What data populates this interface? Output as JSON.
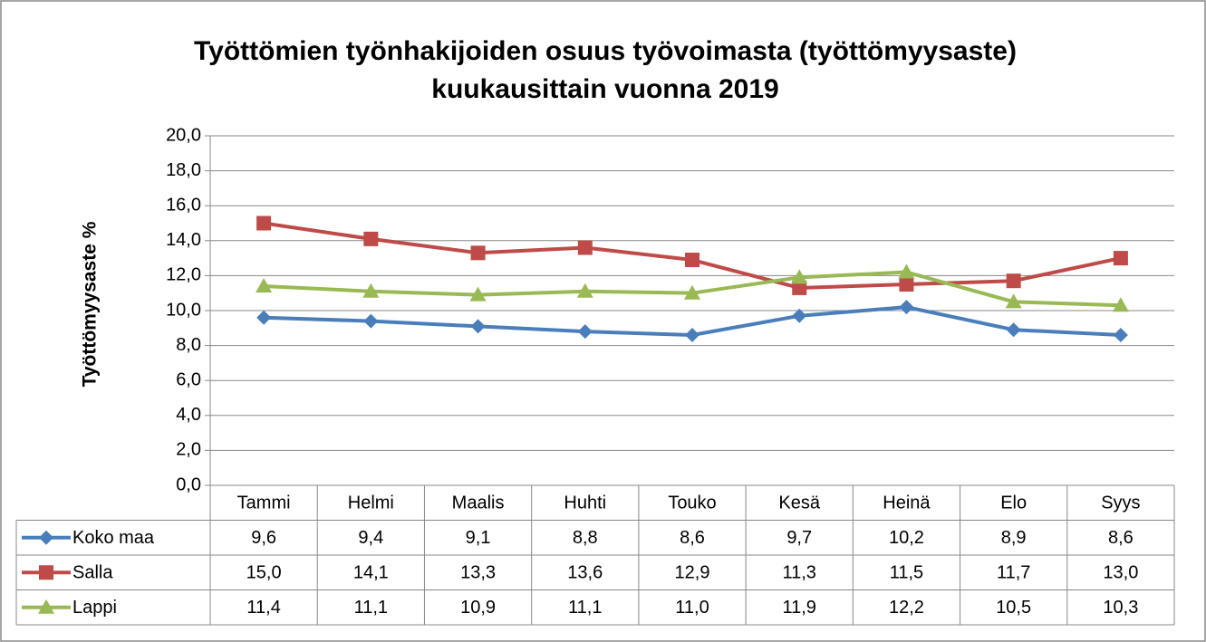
{
  "chart_data": {
    "type": "line",
    "title": "Työttömien työnhakijoiden osuus työvoimasta  (työttömyysaste)",
    "subtitle": "kuukausittain vuonna 2019",
    "y_label": "Työttömyysaste %",
    "categories": [
      "Tammi",
      "Helmi",
      "Maalis",
      "Huhti",
      "Touko",
      "Kesä",
      "Heinä",
      "Elo",
      "Syys"
    ],
    "series": [
      {
        "name": "Koko maa",
        "color": "#4a7ebb",
        "marker": "diamond",
        "values": [
          9.6,
          9.4,
          9.1,
          8.8,
          8.6,
          9.7,
          10.2,
          8.9,
          8.6
        ],
        "value_labels": [
          "9,6",
          "9,4",
          "9,1",
          "8,8",
          "8,6",
          "9,7",
          "10,2",
          "8,9",
          "8,6"
        ]
      },
      {
        "name": "Salla",
        "color": "#be4b48",
        "marker": "square",
        "values": [
          15.0,
          14.1,
          13.3,
          13.6,
          12.9,
          11.3,
          11.5,
          11.7,
          13.0
        ],
        "value_labels": [
          "15,0",
          "14,1",
          "13,3",
          "13,6",
          "12,9",
          "11,3",
          "11,5",
          "11,7",
          "13,0"
        ]
      },
      {
        "name": "Lappi",
        "color": "#98b954",
        "marker": "triangle",
        "values": [
          11.4,
          11.1,
          10.9,
          11.1,
          11.0,
          11.9,
          12.2,
          10.5,
          10.3
        ],
        "value_labels": [
          "11,4",
          "11,1",
          "10,9",
          "11,1",
          "11,0",
          "11,9",
          "12,2",
          "10,5",
          "10,3"
        ]
      }
    ],
    "ylim": [
      0,
      20
    ],
    "yticks": [
      {
        "value": 0,
        "label": "0,0"
      },
      {
        "value": 2,
        "label": "2,0"
      },
      {
        "value": 4,
        "label": "4,0"
      },
      {
        "value": 6,
        "label": "6,0"
      },
      {
        "value": 8,
        "label": "8,0"
      },
      {
        "value": 10,
        "label": "10,0"
      },
      {
        "value": 12,
        "label": "12,0"
      },
      {
        "value": 14,
        "label": "14,0"
      },
      {
        "value": 16,
        "label": "16,0"
      },
      {
        "value": 18,
        "label": "18,0"
      },
      {
        "value": 20,
        "label": "20,0"
      }
    ],
    "grid": true
  }
}
